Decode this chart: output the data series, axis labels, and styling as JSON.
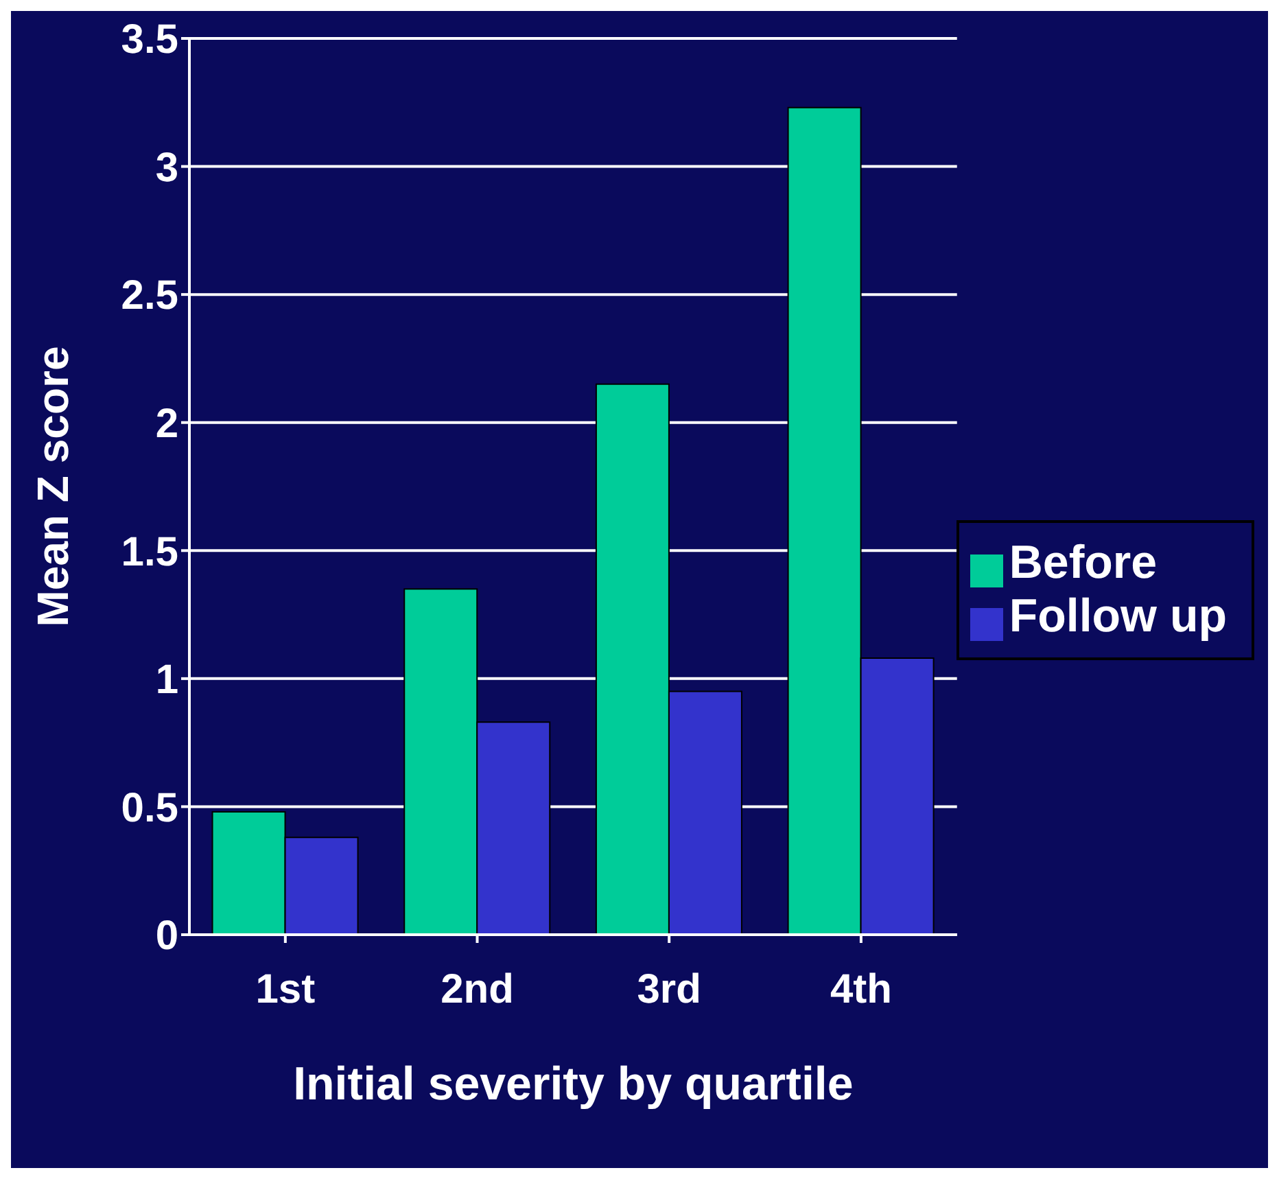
{
  "chart_data": {
    "type": "bar",
    "xlabel": "Initial severity by quartile",
    "ylabel": "Mean Z score",
    "categories": [
      "1st",
      "2nd",
      "3rd",
      "4th"
    ],
    "series": [
      {
        "name": "Before",
        "color": "#00cc99",
        "values": [
          0.48,
          1.35,
          2.15,
          3.23
        ]
      },
      {
        "name": "Follow up",
        "color": "#3333cc",
        "values": [
          0.38,
          0.83,
          0.95,
          1.08
        ]
      }
    ],
    "ylim": [
      0,
      3.5
    ],
    "yticks": [
      0,
      0.5,
      1,
      1.5,
      2,
      2.5,
      3,
      3.5
    ],
    "grid": "y",
    "legend": "right"
  }
}
